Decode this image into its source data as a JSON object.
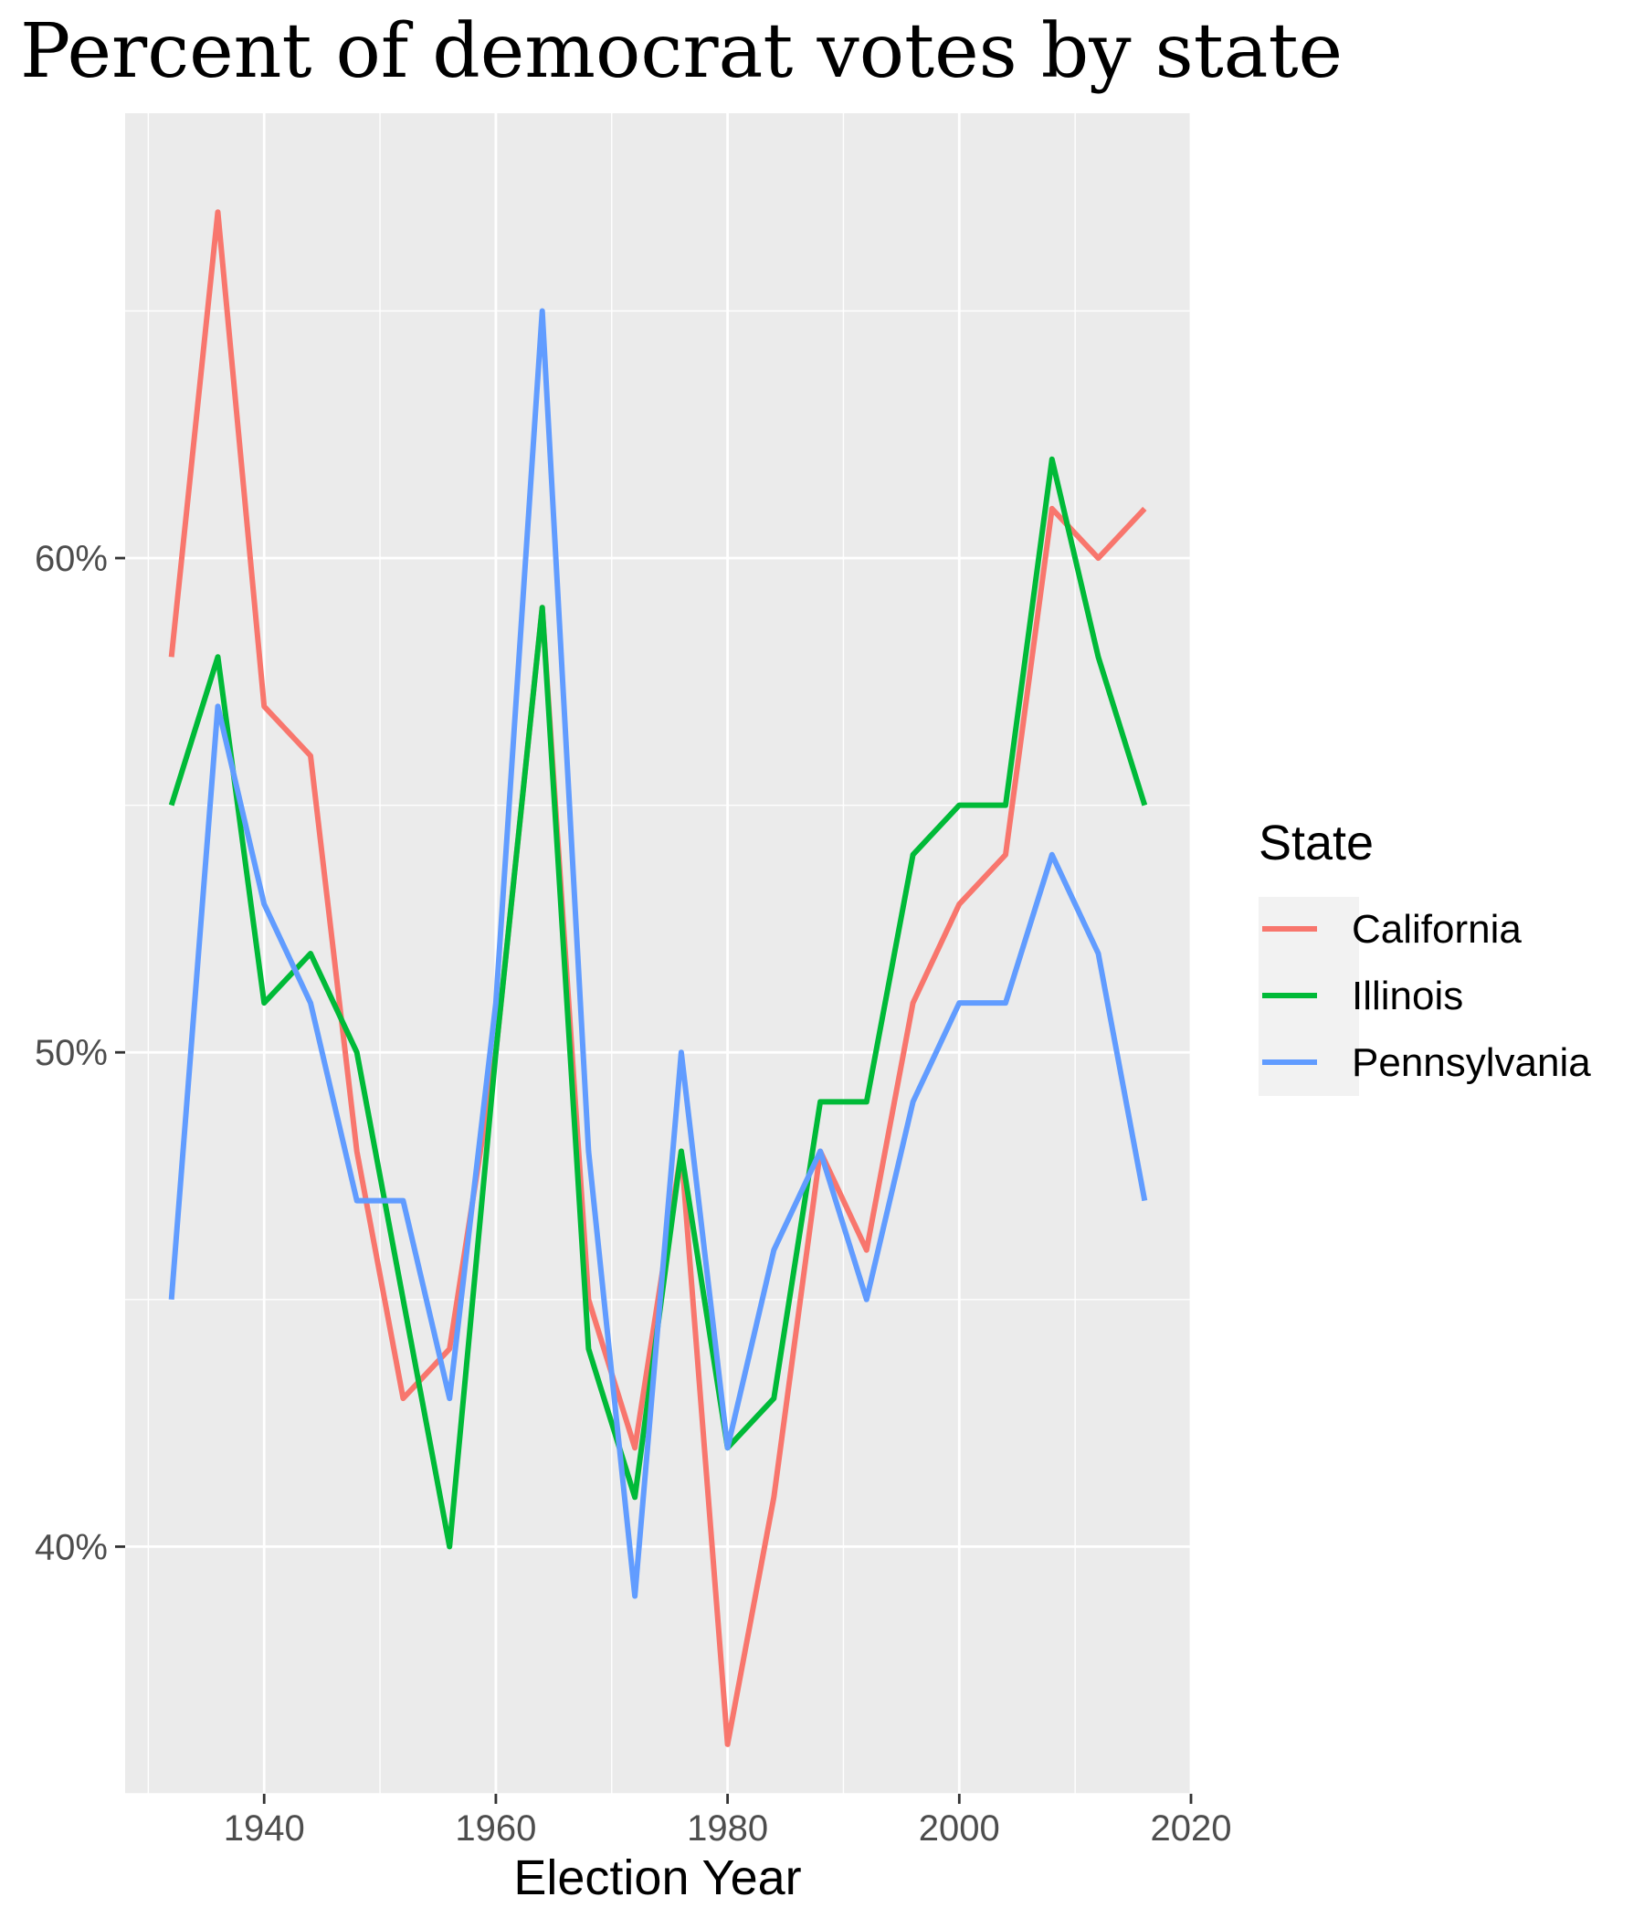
{
  "chart_data": {
    "type": "line",
    "title": "Percent of democrat votes by state",
    "xlabel": "Election Year",
    "ylabel": "",
    "x": [
      1932,
      1936,
      1940,
      1944,
      1948,
      1952,
      1956,
      1960,
      1964,
      1968,
      1972,
      1976,
      1980,
      1984,
      1988,
      1992,
      1996,
      2000,
      2004,
      2008,
      2012,
      2016
    ],
    "xlim": [
      1928,
      2020
    ],
    "ylim": [
      35,
      69
    ],
    "x_ticks": [
      1940,
      1960,
      1980,
      2000,
      2020
    ],
    "y_ticks": [
      40,
      50,
      60
    ],
    "y_tick_labels": [
      "40%",
      "50%",
      "60%"
    ],
    "grid": true,
    "legend": {
      "title": "State",
      "position": "right"
    },
    "series": [
      {
        "name": "California",
        "color": "#F8766D",
        "values": [
          58,
          67,
          57,
          56,
          48,
          43,
          44,
          50,
          59,
          45,
          42,
          48,
          36,
          41,
          48,
          46,
          51,
          53,
          54,
          61,
          60,
          61
        ]
      },
      {
        "name": "Illinois",
        "color": "#00BA38",
        "values": [
          55,
          58,
          51,
          52,
          50,
          45,
          40,
          50,
          59,
          44,
          41,
          48,
          42,
          43,
          49,
          49,
          54,
          55,
          55,
          62,
          58,
          55
        ]
      },
      {
        "name": "Pennsylvania",
        "color": "#619CFF",
        "values": [
          45,
          57,
          53,
          51,
          47,
          47,
          43,
          51,
          65,
          48,
          39,
          50,
          42,
          46,
          48,
          45,
          49,
          51,
          51,
          54,
          52,
          47
        ]
      }
    ]
  }
}
